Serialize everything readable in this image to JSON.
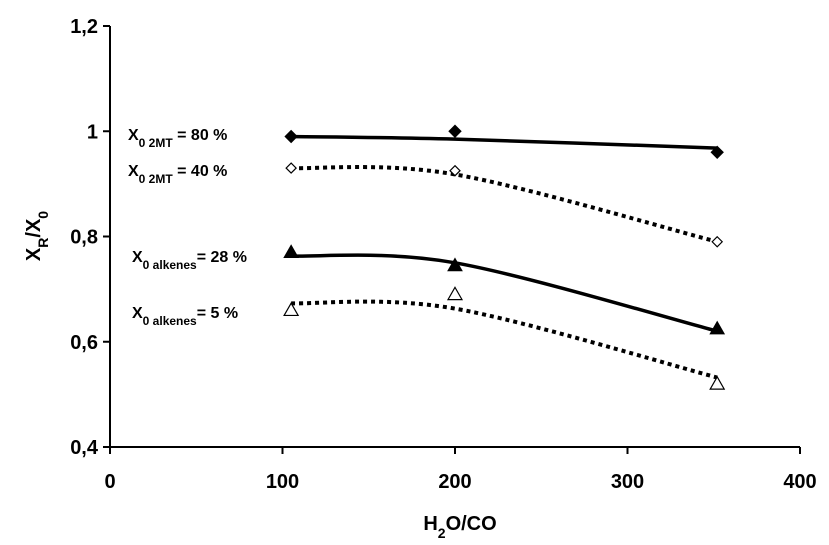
{
  "chart_data": {
    "type": "scatter",
    "title": "",
    "xlabel": {
      "main": "H",
      "sub": "2",
      "rest": "O/CO"
    },
    "ylabel": {
      "main": "X",
      "sub": "R",
      "rest": "/X",
      "sub2": "0"
    },
    "xlim": [
      0,
      400
    ],
    "ylim": [
      0.4,
      1.2
    ],
    "x_ticks": [
      0,
      100,
      200,
      300,
      400
    ],
    "x_tick_labels": [
      "0",
      "100",
      "200",
      "300",
      "400"
    ],
    "y_ticks": [
      0.4,
      0.6,
      0.8,
      1.0,
      1.2
    ],
    "y_tick_labels": [
      "0,4",
      "0,6",
      "0,8",
      "1",
      "1,2"
    ],
    "grid": false,
    "legend": "none",
    "series": [
      {
        "marker": "diamond-filled",
        "line": "solid",
        "x": [
          105,
          200,
          352
        ],
        "y": [
          0.99,
          1.0,
          0.96
        ],
        "fit_x": [
          105,
          200,
          352
        ],
        "fit_y": [
          0.99,
          0.985,
          0.968
        ],
        "label": {
          "pre": "X",
          "sub": "0 2MT",
          "post": " = 80 %"
        }
      },
      {
        "marker": "diamond-open",
        "line": "dotted",
        "x": [
          105,
          200,
          352
        ],
        "y": [
          0.93,
          0.925,
          0.79
        ],
        "fit_x": [
          105,
          200,
          352
        ],
        "fit_y": [
          0.93,
          0.918,
          0.79
        ],
        "label": {
          "pre": "X",
          "sub": "0 2MT",
          "post": " = 40 %"
        }
      },
      {
        "marker": "triangle-filled",
        "line": "solid",
        "x": [
          105,
          200,
          352
        ],
        "y": [
          0.77,
          0.745,
          0.625
        ],
        "fit_x": [
          105,
          200,
          352
        ],
        "fit_y": [
          0.763,
          0.75,
          0.62
        ],
        "label": {
          "pre": "X",
          "sub": "0 alkenes",
          "post": "= 28 %"
        }
      },
      {
        "marker": "triangle-open",
        "line": "dotted",
        "x": [
          105,
          200,
          352
        ],
        "y": [
          0.66,
          0.69,
          0.52
        ],
        "fit_x": [
          105,
          200,
          352
        ],
        "fit_y": [
          0.673,
          0.663,
          0.532
        ],
        "label": {
          "pre": "X",
          "sub": "0 alkenes",
          "post": "= 5 %"
        }
      }
    ]
  }
}
